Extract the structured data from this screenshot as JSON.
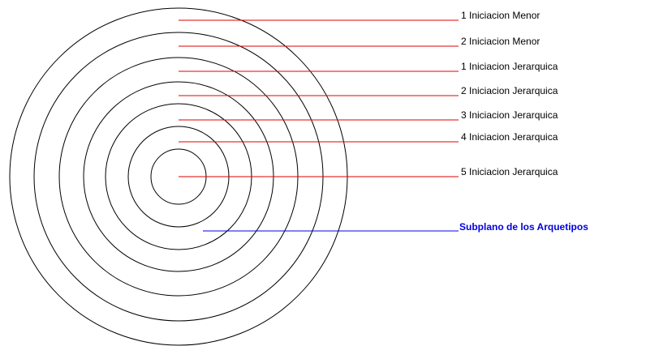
{
  "levels": [
    "1 Iniciacion Menor",
    "2 Iniciacion Menor",
    "1 Iniciacion Jerarquica",
    "2 Iniciacion Jerarquica",
    "3 Iniciacion Jerarquica",
    "4 Iniciacion Jerarquica",
    "5 Iniciacion Jerarquica"
  ],
  "subplane": "Subplano de los Arquetipos"
}
